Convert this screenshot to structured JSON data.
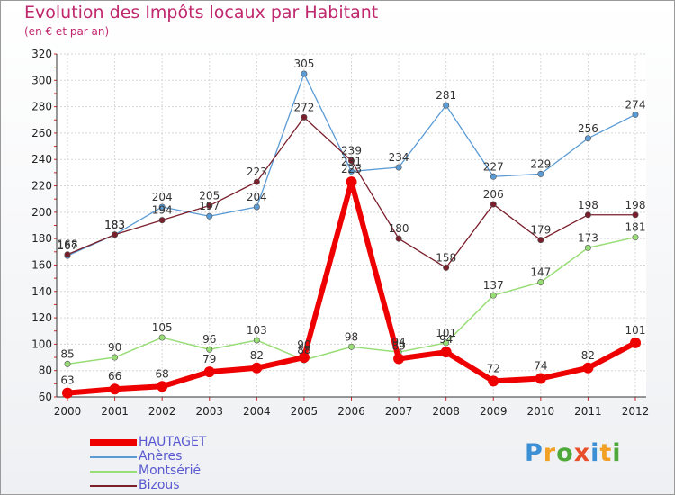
{
  "title": "Evolution des Impôts locaux par Habitant",
  "subtitle": "(en € et par an)",
  "logo": {
    "letters": [
      "P",
      "r",
      "o",
      "x",
      "i",
      "t",
      "i"
    ],
    "colors": [
      "#3b8fd4",
      "#f2a124",
      "#4fa83a",
      "#e8502b",
      "#3b8fd4",
      "#f2a124",
      "#4fa83a"
    ]
  },
  "chart_data": {
    "type": "line",
    "x": [
      2000,
      2001,
      2002,
      2003,
      2004,
      2005,
      2006,
      2007,
      2008,
      2009,
      2010,
      2011,
      2012
    ],
    "ylim": [
      60,
      320
    ],
    "yticks": [
      60,
      80,
      100,
      120,
      140,
      160,
      180,
      200,
      220,
      240,
      260,
      280,
      300,
      320
    ],
    "grid": true,
    "legend_position": "bottom-left",
    "series": [
      {
        "name": "Anères",
        "color": "#5b9bd5",
        "width": 1.3,
        "values": [
          167,
          183,
          204,
          197,
          204,
          305,
          231,
          234,
          281,
          227,
          229,
          256,
          274
        ],
        "labels": [
          "167",
          "183",
          "204",
          "197",
          "204",
          "305",
          "231",
          "234",
          "281",
          "227",
          "229",
          "256",
          "274"
        ]
      },
      {
        "name": "Montsérié",
        "color": "#99dd77",
        "width": 1.5,
        "values": [
          85,
          90,
          105,
          96,
          103,
          88,
          98,
          94,
          101,
          137,
          147,
          173,
          181
        ],
        "labels": [
          "85",
          "90",
          "105",
          "96",
          "103",
          "88",
          "98",
          "94",
          "101",
          "137",
          "147",
          "173",
          "181"
        ]
      },
      {
        "name": "Bizous",
        "color": "#7a1f2b",
        "width": 1.3,
        "values": [
          168,
          183,
          194,
          205,
          223,
          272,
          239,
          180,
          158,
          206,
          179,
          198,
          198
        ],
        "labels": [
          "168",
          "183",
          "194",
          "205",
          "223",
          "272",
          "239",
          "180",
          "158",
          "206",
          "179",
          "198",
          "198"
        ]
      },
      {
        "name": "HAUTAGET",
        "color": "#ee0000",
        "width": 6,
        "values": [
          63,
          66,
          68,
          79,
          82,
          90,
          223,
          89,
          94,
          72,
          74,
          82,
          101
        ],
        "labels": [
          "63",
          "66",
          "68",
          "79",
          "82",
          "90",
          "223",
          "89",
          "94",
          "72",
          "74",
          "82",
          "101"
        ]
      }
    ],
    "legend_order": [
      "HAUTAGET",
      "Anères",
      "Montsérié",
      "Bizous"
    ]
  }
}
